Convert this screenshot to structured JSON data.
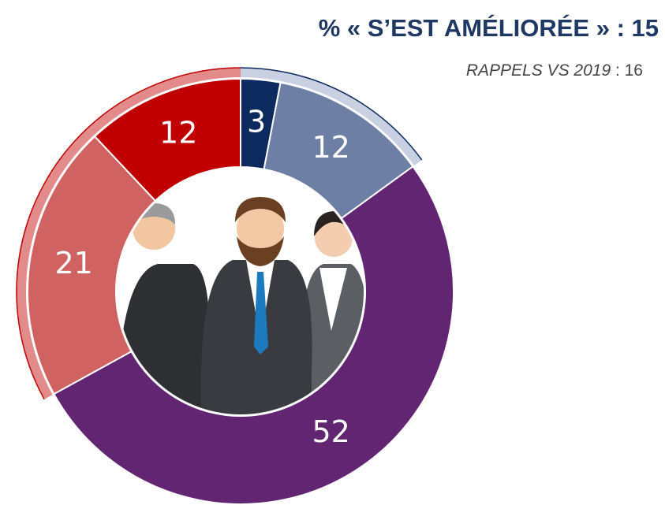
{
  "chart_data": {
    "type": "donut",
    "title": "% « S’EST AMÉLIORÉE » : 15",
    "subtitle": [
      "RAPPELS VS 2019",
      " : 16"
    ],
    "categories": [
      null,
      null,
      null,
      null,
      null
    ],
    "values": [
      3,
      12,
      52,
      21,
      12
    ],
    "colors": [
      "#0d2a5e",
      "#6e7fa6",
      "#622572",
      "#d06262",
      "#c00000"
    ],
    "outer_colors": [
      "#c8d0e2",
      "#c8d0e2",
      null,
      "#e38b8b",
      "#e38b8b"
    ],
    "outer_edge_colors": [
      "#0d2a5e",
      "#0d2a5e",
      null,
      "#c00000",
      "#c00000"
    ]
  }
}
